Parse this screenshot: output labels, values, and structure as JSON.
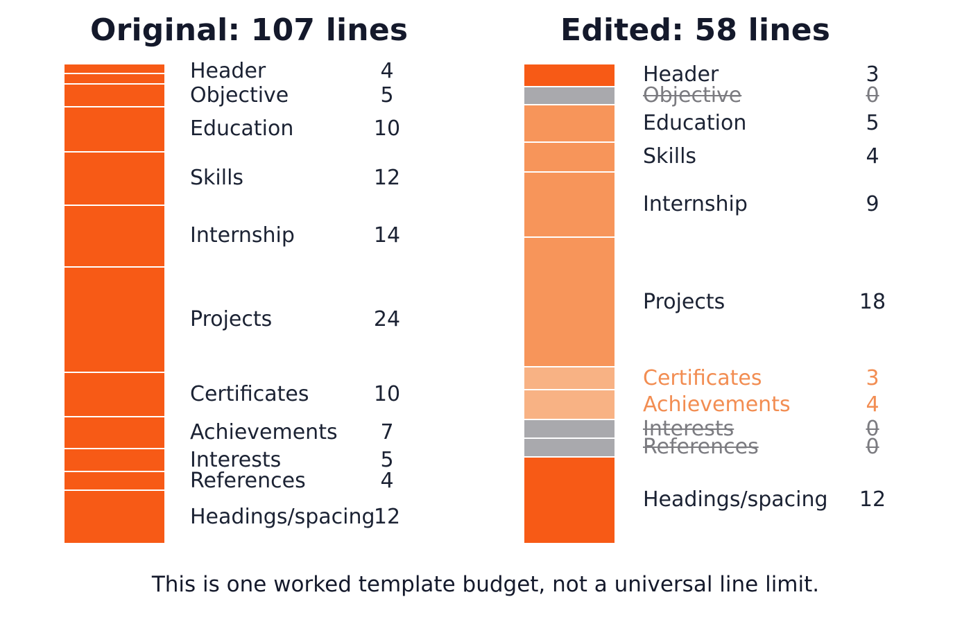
{
  "colors": {
    "kept": "#f75a16",
    "reduced": "#f7955a",
    "reduced_light": "#f8b284",
    "removed": "#a9a9ad",
    "text": "#1b2233",
    "removed_text": "#7b7b80",
    "highlight_text": "#f28d52"
  },
  "chart_data": [
    {
      "type": "bar",
      "stacked": true,
      "title": "Original: 107 lines",
      "unit": "lines",
      "categories": [
        "Header",
        "Objective",
        "Education",
        "Skills",
        "Internship",
        "Projects",
        "Certificates",
        "Achievements",
        "Interests",
        "References",
        "Headings/spacing"
      ],
      "values": [
        4,
        5,
        10,
        12,
        14,
        24,
        10,
        7,
        5,
        4,
        12
      ]
    },
    {
      "type": "bar",
      "stacked": true,
      "title": "Edited: 58 lines",
      "unit": "lines",
      "categories": [
        "Header",
        "Objective",
        "Education",
        "Skills",
        "Internship",
        "Projects",
        "Certificates",
        "Achievements",
        "Interests",
        "References",
        "Headings/spacing"
      ],
      "values": [
        3,
        0,
        5,
        4,
        9,
        18,
        3,
        4,
        0,
        0,
        12
      ],
      "removed": [
        "Objective",
        "Interests",
        "References"
      ],
      "highlighted": [
        "Certificates",
        "Achievements"
      ]
    }
  ],
  "footnote": "This is one worked template budget, not a universal line limit."
}
